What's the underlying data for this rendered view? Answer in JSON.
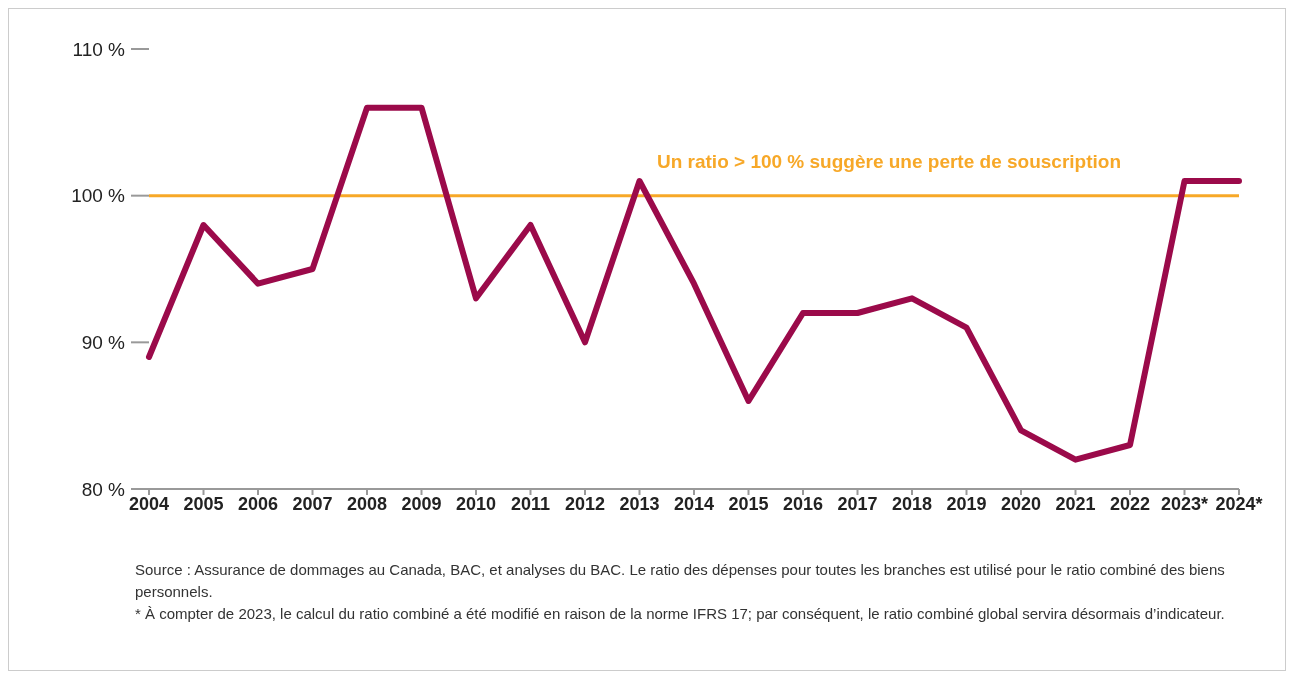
{
  "chart_data": {
    "type": "line",
    "categories": [
      "2004",
      "2005",
      "2006",
      "2007",
      "2008",
      "2009",
      "2010",
      "2011",
      "2012",
      "2013",
      "2014",
      "2015",
      "2016",
      "2017",
      "2018",
      "2019",
      "2020",
      "2021",
      "2022",
      "2023*",
      "2024*"
    ],
    "series": [
      {
        "color": "#9b0a4a",
        "values": [
          89,
          98,
          94,
          95,
          106,
          106,
          93,
          98,
          90,
          101,
          94,
          86,
          92,
          92,
          93,
          91,
          84,
          82,
          83,
          101,
          101
        ]
      }
    ],
    "ylim": [
      80,
      110
    ],
    "yticks": [
      {
        "value": 80,
        "label": "80 %"
      },
      {
        "value": 90,
        "label": "90 %"
      },
      {
        "value": 100,
        "label": "100 %"
      },
      {
        "value": 110,
        "label": "110 %"
      }
    ],
    "grid": false,
    "legend": false,
    "marker": "none",
    "line_style": "solid",
    "ref_lines": [
      {
        "axis": "y",
        "value": 100,
        "label": "Un ratio > 100 % suggère une perte de souscription",
        "color": "#f7a828"
      }
    ],
    "annotations": [
      "Source : Assurance de dommages au Canada, BAC, et analyses du BAC. Le ratio des dépenses pour toutes les branches est utilisé pour le ratio combiné des biens personnels.",
      "* À compter de 2023, le calcul du ratio combiné a été modifié en raison de la norme IFRS 17; par conséquent, le ratio combiné global servira désormais d’indicateur."
    ]
  }
}
